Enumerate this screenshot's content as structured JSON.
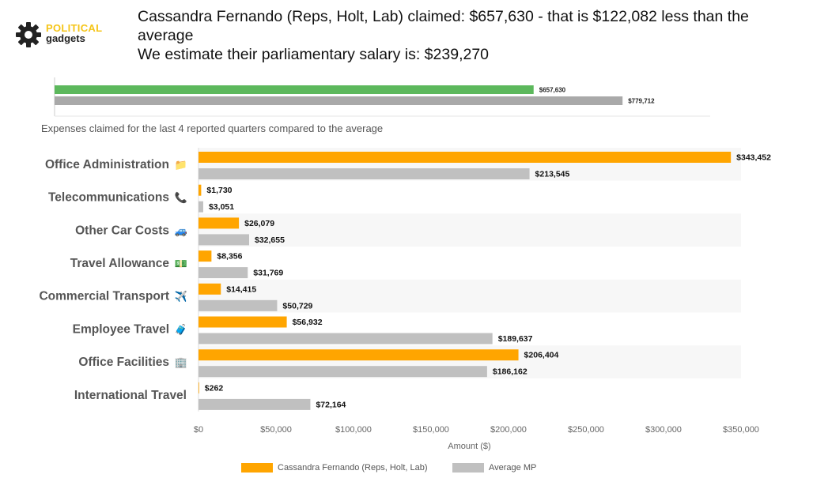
{
  "logo": {
    "line1": "POLITICAL",
    "line2": "gadgets"
  },
  "headline": {
    "line1": "Cassandra Fernando (Reps, Holt, Lab) claimed: $657,630 - that is $122,082 less than the",
    "line2": "average",
    "line3": "We estimate their parliamentary salary is: $239,270"
  },
  "subtitle": "Expenses claimed for the last 4 reported quarters compared to the average",
  "colors": {
    "member": "#ffa500",
    "average": "#c0c0c0",
    "total_member": "#5cb85c",
    "total_average": "#a9a9a9"
  },
  "chart_data": [
    {
      "type": "bar",
      "orientation": "horizontal",
      "series": [
        {
          "values": [
            657630
          ],
          "labels": [
            "$657,630"
          ]
        },
        {
          "values": [
            779712
          ],
          "labels": [
            "$779,712"
          ]
        }
      ],
      "xlim": [
        0,
        900000
      ]
    },
    {
      "type": "bar",
      "orientation": "horizontal",
      "categories": [
        {
          "label": "Office Administration",
          "icon": "📁"
        },
        {
          "label": "Telecommunications",
          "icon": "📞"
        },
        {
          "label": "Other Car Costs",
          "icon": "🚙"
        },
        {
          "label": "Travel Allowance",
          "icon": "💵"
        },
        {
          "label": "Commercial Transport",
          "icon": "✈️"
        },
        {
          "label": "Employee Travel",
          "icon": "🧳"
        },
        {
          "label": "Office Facilities",
          "icon": "🏢"
        },
        {
          "label": "International Travel",
          "icon": ""
        }
      ],
      "series": [
        {
          "name": "Cassandra Fernando  (Reps, Holt, Lab)",
          "values": [
            343452,
            1730,
            26079,
            8356,
            14415,
            56932,
            206404,
            262
          ],
          "labels": [
            "$343,452",
            "$1,730",
            "$26,079",
            "$8,356",
            "$14,415",
            "$56,932",
            "$206,404",
            "$262"
          ]
        },
        {
          "name": "Average MP",
          "values": [
            213545,
            3051,
            32655,
            31769,
            50729,
            189637,
            186162,
            72164
          ],
          "labels": [
            "$213,545",
            "$3,051",
            "$32,655",
            "$31,769",
            "$50,729",
            "$189,637",
            "$186,162",
            "$72,164"
          ]
        }
      ],
      "xlabel": "Amount ($)",
      "xlim": [
        0,
        350000
      ],
      "xticks": [
        0,
        50000,
        100000,
        150000,
        200000,
        250000,
        300000,
        350000
      ],
      "xtick_labels": [
        "$0",
        "$50,000",
        "$100,000",
        "$150,000",
        "$200,000",
        "$250,000",
        "$300,000",
        "$350,000"
      ],
      "legend": "bottom"
    }
  ]
}
